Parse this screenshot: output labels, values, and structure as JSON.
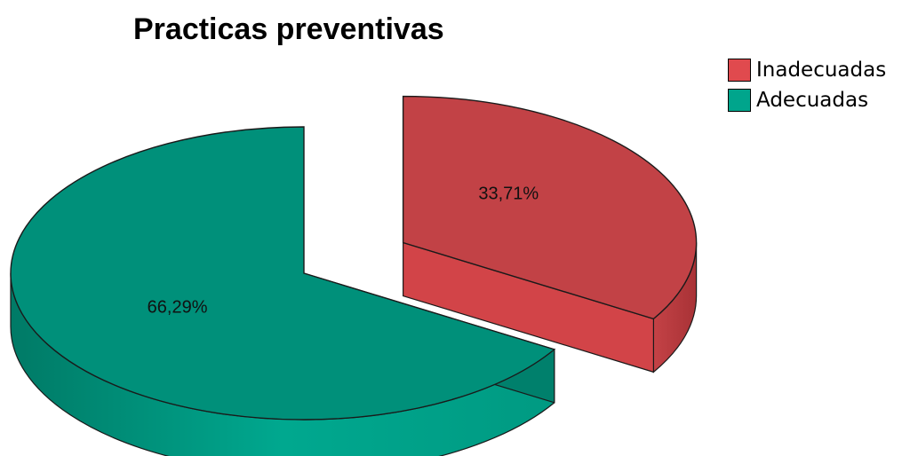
{
  "chart_data": {
    "type": "pie",
    "style": "3d-exploded",
    "title": "Practicas preventivas",
    "legend_position": "top-right",
    "slices": [
      {
        "name": "Inadecuadas",
        "value": 33.71,
        "label": "33,71%",
        "color": "#c24246",
        "exploded": true
      },
      {
        "name": "Adecuadas",
        "value": 66.29,
        "label": "66,29%",
        "color": "#00907a",
        "exploded": false
      }
    ]
  }
}
